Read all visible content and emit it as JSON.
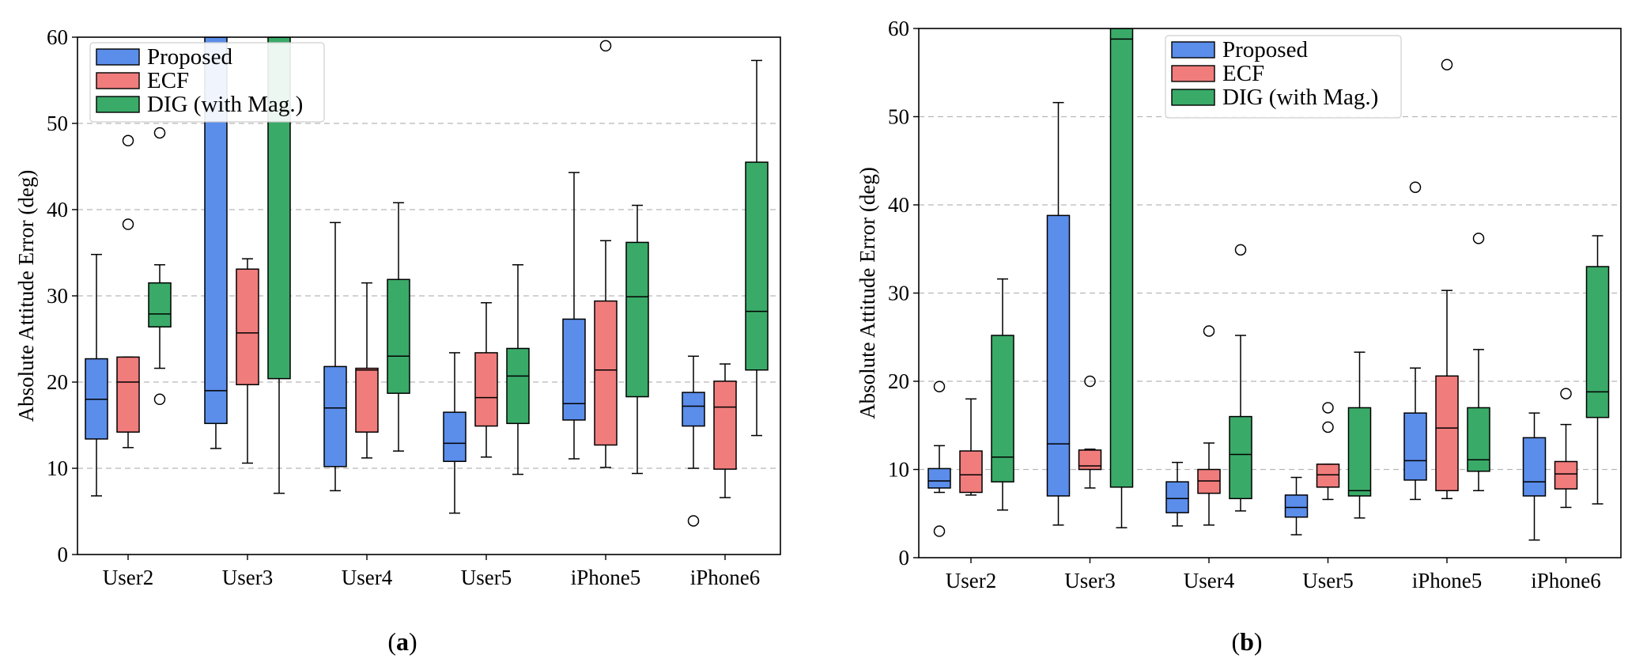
{
  "chart_data": [
    {
      "panel": "a",
      "type": "box",
      "ylabel": "Absolute Attitude Error (deg)",
      "xlabel": "",
      "ylim": [
        0,
        60
      ],
      "yticks": [
        0,
        10,
        20,
        30,
        40,
        50,
        60
      ],
      "ytick_labels": [
        "0",
        "10",
        "20",
        "30",
        "40",
        "50",
        "60"
      ],
      "grid": "horizontal dashed",
      "legend": {
        "placement": "top-left"
      },
      "categories": [
        "User2",
        "User3",
        "User4",
        "User5",
        "iPhone5",
        "iPhone6"
      ],
      "series": [
        {
          "name": "Proposed",
          "color": "#5b8dea",
          "boxes": [
            {
              "whislo": 6.8,
              "q1": 13.4,
              "med": 18.0,
              "q3": 22.7,
              "whishi": 34.8,
              "fliers": []
            },
            {
              "whislo": 12.3,
              "q1": 15.2,
              "med": 19.0,
              "q3": 62,
              "whishi": 62,
              "fliers": []
            },
            {
              "whislo": 7.4,
              "q1": 10.2,
              "med": 17.0,
              "q3": 21.8,
              "whishi": 38.5,
              "fliers": []
            },
            {
              "whislo": 4.8,
              "q1": 10.8,
              "med": 12.9,
              "q3": 16.5,
              "whishi": 23.4,
              "fliers": []
            },
            {
              "whislo": 11.1,
              "q1": 15.6,
              "med": 17.5,
              "q3": 27.3,
              "whishi": 44.3,
              "fliers": []
            },
            {
              "whislo": 10.0,
              "q1": 14.9,
              "med": 17.2,
              "q3": 18.8,
              "whishi": 23.0,
              "fliers": [
                3.9
              ]
            }
          ]
        },
        {
          "name": "ECF",
          "color": "#f07c7c",
          "boxes": [
            {
              "whislo": 12.4,
              "q1": 14.2,
              "med": 20.0,
              "q3": 22.9,
              "whishi": 22.9,
              "fliers": [
                38.3,
                48.0
              ]
            },
            {
              "whislo": 10.6,
              "q1": 19.7,
              "med": 25.7,
              "q3": 33.1,
              "whishi": 34.3,
              "fliers": []
            },
            {
              "whislo": 11.2,
              "q1": 14.2,
              "med": 21.4,
              "q3": 21.6,
              "whishi": 31.5,
              "fliers": []
            },
            {
              "whislo": 11.3,
              "q1": 14.9,
              "med": 18.2,
              "q3": 23.4,
              "whishi": 29.2,
              "fliers": []
            },
            {
              "whislo": 10.1,
              "q1": 12.7,
              "med": 21.4,
              "q3": 29.4,
              "whishi": 36.4,
              "fliers": [
                59.0
              ]
            },
            {
              "whislo": 6.6,
              "q1": 9.9,
              "med": 17.1,
              "q3": 20.1,
              "whishi": 22.1,
              "fliers": []
            }
          ]
        },
        {
          "name": "DIG (with Mag.)",
          "color": "#3aaa68",
          "boxes": [
            {
              "whislo": 21.6,
              "q1": 26.4,
              "med": 27.9,
              "q3": 31.5,
              "whishi": 33.6,
              "fliers": [
                18.0,
                48.9
              ]
            },
            {
              "whislo": 7.1,
              "q1": 20.4,
              "med": 62,
              "q3": 62,
              "whishi": 62,
              "fliers": []
            },
            {
              "whislo": 12.0,
              "q1": 18.7,
              "med": 23.0,
              "q3": 31.9,
              "whishi": 40.8,
              "fliers": []
            },
            {
              "whislo": 9.3,
              "q1": 15.2,
              "med": 20.7,
              "q3": 23.9,
              "whishi": 33.6,
              "fliers": []
            },
            {
              "whislo": 9.4,
              "q1": 18.3,
              "med": 29.9,
              "q3": 36.2,
              "whishi": 40.5,
              "fliers": []
            },
            {
              "whislo": 13.8,
              "q1": 21.4,
              "med": 28.2,
              "q3": 45.5,
              "whishi": 57.3,
              "fliers": []
            }
          ]
        }
      ]
    },
    {
      "panel": "b",
      "type": "box",
      "ylabel": "Absolute Attitude Error (deg)",
      "xlabel": "",
      "ylim": [
        0,
        60
      ],
      "yticks": [
        0,
        10,
        20,
        30,
        40,
        50,
        60
      ],
      "ytick_labels": [
        "0",
        "10",
        "20",
        "30",
        "40",
        "50",
        "60"
      ],
      "grid": "horizontal dashed",
      "legend": {
        "placement": "top-center"
      },
      "categories": [
        "User2",
        "User3",
        "User4",
        "User5",
        "iPhone5",
        "iPhone6"
      ],
      "series": [
        {
          "name": "Proposed",
          "color": "#5b8dea",
          "boxes": [
            {
              "whislo": 7.4,
              "q1": 7.9,
              "med": 8.7,
              "q3": 10.1,
              "whishi": 12.7,
              "fliers": [
                3.0,
                19.4
              ]
            },
            {
              "whislo": 3.7,
              "q1": 7.0,
              "med": 12.9,
              "q3": 38.8,
              "whishi": 51.6,
              "fliers": []
            },
            {
              "whislo": 3.6,
              "q1": 5.1,
              "med": 6.7,
              "q3": 8.6,
              "whishi": 10.8,
              "fliers": []
            },
            {
              "whislo": 2.6,
              "q1": 4.6,
              "med": 5.7,
              "q3": 7.1,
              "whishi": 9.1,
              "fliers": []
            },
            {
              "whislo": 6.6,
              "q1": 8.8,
              "med": 11.0,
              "q3": 16.4,
              "whishi": 21.5,
              "fliers": [
                42.0
              ]
            },
            {
              "whislo": 2.0,
              "q1": 7.0,
              "med": 8.6,
              "q3": 13.6,
              "whishi": 16.4,
              "fliers": []
            }
          ]
        },
        {
          "name": "ECF",
          "color": "#f07c7c",
          "boxes": [
            {
              "whislo": 7.1,
              "q1": 7.4,
              "med": 9.4,
              "q3": 12.1,
              "whishi": 18.0,
              "fliers": []
            },
            {
              "whislo": 7.9,
              "q1": 10.0,
              "med": 10.4,
              "q3": 12.2,
              "whishi": 12.3,
              "fliers": [
                20.0
              ]
            },
            {
              "whislo": 3.7,
              "q1": 7.3,
              "med": 8.7,
              "q3": 10.0,
              "whishi": 13.0,
              "fliers": [
                25.7
              ]
            },
            {
              "whislo": 6.6,
              "q1": 8.0,
              "med": 9.4,
              "q3": 10.6,
              "whishi": 10.6,
              "fliers": [
                14.8,
                17.0
              ]
            },
            {
              "whislo": 6.7,
              "q1": 7.6,
              "med": 14.7,
              "q3": 20.6,
              "whishi": 30.3,
              "fliers": [
                55.9
              ]
            },
            {
              "whislo": 5.7,
              "q1": 7.8,
              "med": 9.5,
              "q3": 10.9,
              "whishi": 15.1,
              "fliers": [
                18.6
              ]
            }
          ]
        },
        {
          "name": "DIG (with Mag.)",
          "color": "#3aaa68",
          "boxes": [
            {
              "whislo": 5.4,
              "q1": 8.6,
              "med": 11.4,
              "q3": 25.2,
              "whishi": 31.6,
              "fliers": []
            },
            {
              "whislo": 3.4,
              "q1": 8.0,
              "med": 58.8,
              "q3": 62,
              "whishi": 62,
              "fliers": []
            },
            {
              "whislo": 5.3,
              "q1": 6.7,
              "med": 11.7,
              "q3": 16.0,
              "whishi": 25.2,
              "fliers": [
                34.9
              ]
            },
            {
              "whislo": 4.5,
              "q1": 7.0,
              "med": 7.6,
              "q3": 17.0,
              "whishi": 23.3,
              "fliers": []
            },
            {
              "whislo": 7.6,
              "q1": 9.8,
              "med": 11.1,
              "q3": 17.0,
              "whishi": 23.6,
              "fliers": [
                36.2
              ]
            },
            {
              "whislo": 6.1,
              "q1": 15.9,
              "med": 18.8,
              "q3": 33.0,
              "whishi": 36.5,
              "fliers": []
            }
          ]
        }
      ]
    }
  ],
  "panel_labels": [
    {
      "open": "(",
      "letter": "a",
      "close": ")"
    },
    {
      "open": "(",
      "letter": "b",
      "close": ")"
    }
  ]
}
